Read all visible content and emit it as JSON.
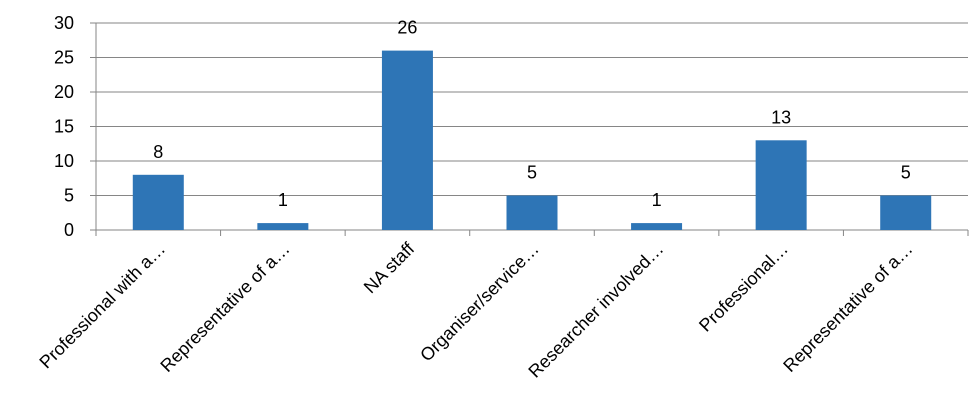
{
  "chart_data": {
    "type": "bar",
    "title": "",
    "xlabel": "",
    "ylabel": "",
    "categories": [
      "Professional with a…",
      "Representative of a…",
      "NA staff",
      "Organiser/service…",
      "Researcher involved…",
      "Professional…",
      "Representative of a…"
    ],
    "values": [
      8,
      1,
      26,
      5,
      1,
      13,
      5
    ],
    "ylim": [
      0,
      30
    ],
    "yticks": [
      0,
      5,
      10,
      15,
      20,
      25,
      30
    ],
    "grid": true,
    "legend": "none",
    "bar_color": "#2E75B6",
    "grid_color": "#868686",
    "data_labels": true
  }
}
